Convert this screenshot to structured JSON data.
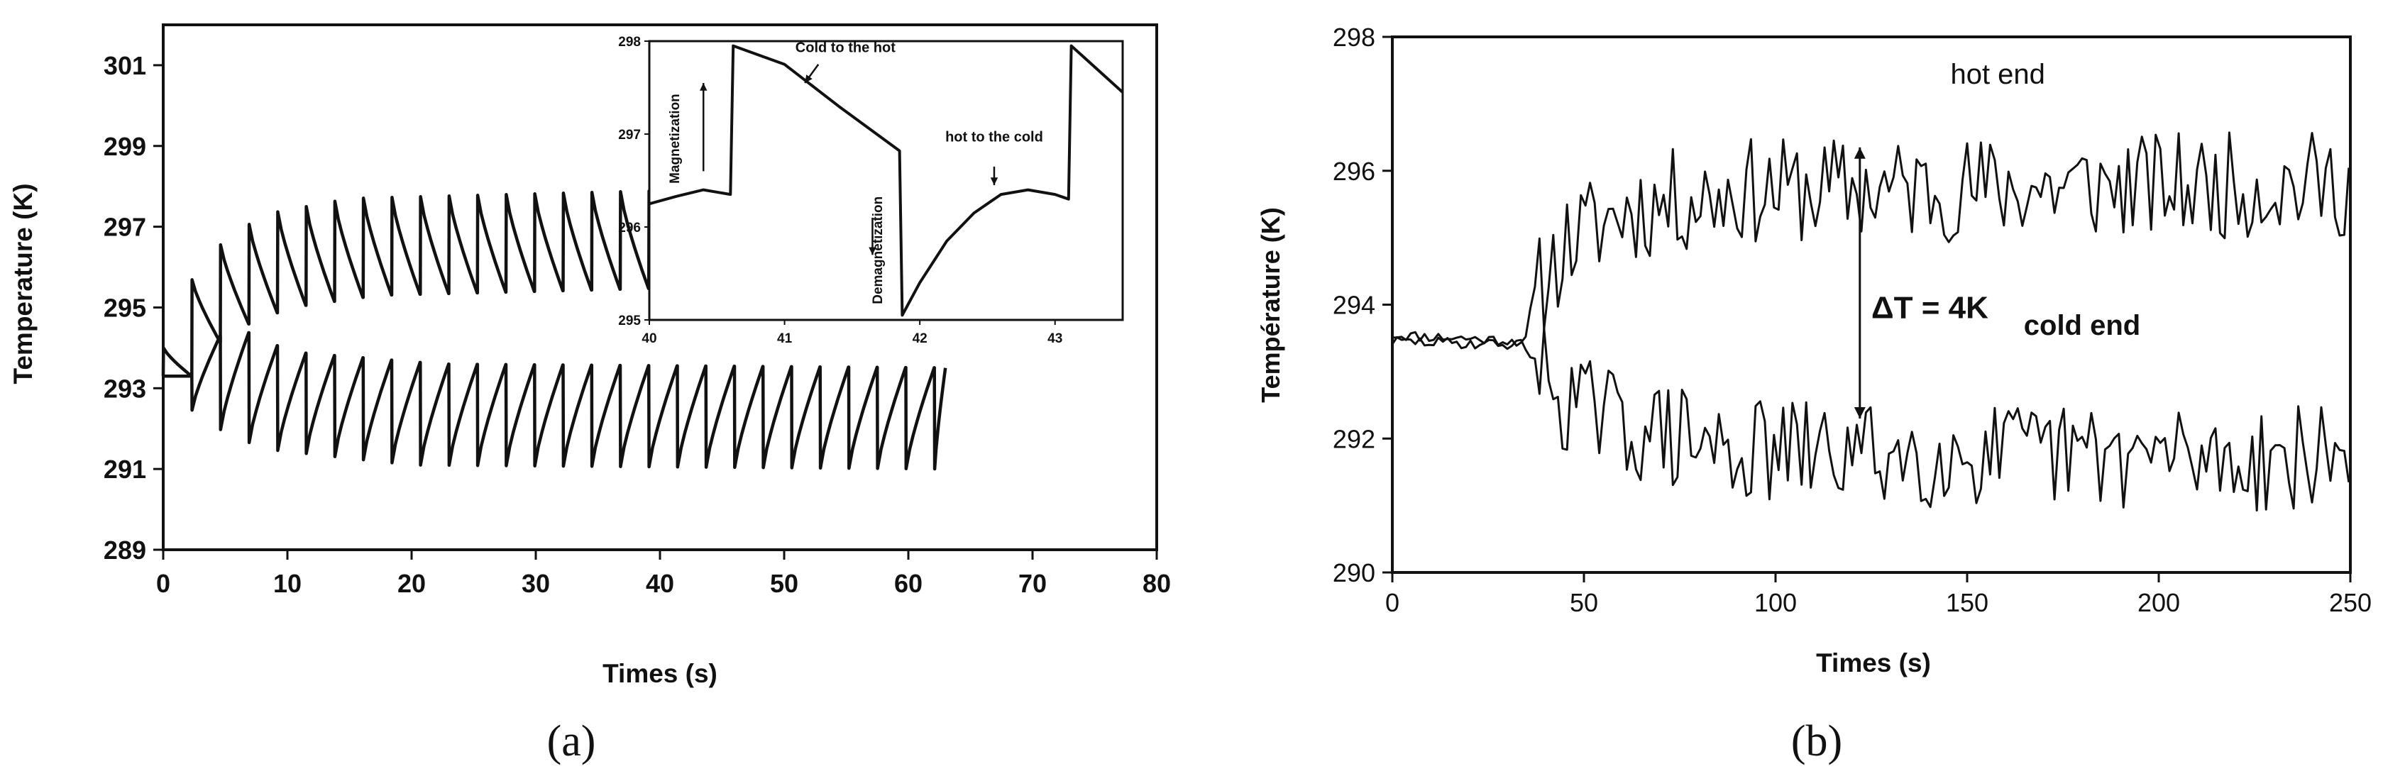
{
  "chart_data": [
    {
      "panel": "a",
      "type": "line",
      "caption": "(a)",
      "xlabel": "Times (s)",
      "ylabel": "Temperature (K)",
      "xlim": [
        0,
        80
      ],
      "ylim": [
        289,
        302
      ],
      "xticks": [
        0,
        10,
        20,
        30,
        40,
        50,
        60,
        70,
        80
      ],
      "yticks": [
        289,
        291,
        293,
        295,
        297,
        299,
        301
      ],
      "grid": false,
      "series": [
        {
          "role": "hot",
          "period": 2.3,
          "x_range": [
            0,
            41
          ],
          "start": 293.3,
          "envelope_top": [
            [
              0,
              294.0
            ],
            [
              3,
              296.2
            ],
            [
              8,
              297.3
            ],
            [
              15,
              297.7
            ],
            [
              41,
              297.9
            ]
          ],
          "envelope_bottom": [
            [
              0,
              293.3
            ],
            [
              3,
              294.4
            ],
            [
              8,
              295.0
            ],
            [
              15,
              295.3
            ],
            [
              41,
              295.5
            ]
          ]
        },
        {
          "role": "cold",
          "period": 2.3,
          "x_range": [
            0,
            63
          ],
          "start": 293.3,
          "envelope_top": [
            [
              0,
              293.3
            ],
            [
              3,
              294.6
            ],
            [
              8,
              293.9
            ],
            [
              20,
              293.6
            ],
            [
              63,
              293.5
            ]
          ],
          "envelope_bottom": [
            [
              0,
              293.3
            ],
            [
              3,
              292.2
            ],
            [
              8,
              291.5
            ],
            [
              20,
              291.1
            ],
            [
              63,
              291.0
            ]
          ]
        }
      ],
      "inset": {
        "xlim": [
          40,
          43.5
        ],
        "ylim": [
          295,
          298
        ],
        "xticks": [
          40,
          41,
          42,
          43
        ],
        "yticks": [
          295,
          296,
          297,
          298
        ],
        "series": {
          "x": [
            40.0,
            40.2,
            40.4,
            40.6,
            40.62,
            41.0,
            41.4,
            41.85,
            41.87,
            42.0,
            42.2,
            42.4,
            42.6,
            42.8,
            43.0,
            43.1,
            43.12,
            43.5
          ],
          "y": [
            296.25,
            296.33,
            296.4,
            296.35,
            297.95,
            297.75,
            297.3,
            296.82,
            295.05,
            295.4,
            295.85,
            296.15,
            296.35,
            296.4,
            296.35,
            296.3,
            297.95,
            297.45
          ]
        },
        "annotations": [
          {
            "text": "Cold to the hot",
            "x": 41.45,
            "y": 297.88
          },
          {
            "text": "hot to the cold",
            "x": 42.55,
            "y": 296.92
          },
          {
            "text": "Magnetization",
            "x": 40.22,
            "y": 296.95,
            "orient": "vertical"
          },
          {
            "text": "Demagnetization",
            "x": 41.72,
            "y": 295.75,
            "orient": "vertical"
          }
        ],
        "arrows": [
          {
            "from": [
              40.4,
              296.6
            ],
            "to": [
              40.4,
              297.55
            ]
          },
          {
            "from": [
              41.65,
              296.1
            ],
            "to": [
              41.65,
              295.7
            ]
          },
          {
            "from": [
              41.25,
              297.75
            ],
            "to": [
              41.15,
              297.55
            ]
          },
          {
            "from": [
              42.55,
              296.65
            ],
            "to": [
              42.55,
              296.45
            ]
          }
        ]
      }
    },
    {
      "panel": "b",
      "type": "line",
      "caption": "(b)",
      "xlabel": "Times (s)",
      "ylabel": "Température (K)",
      "xlim": [
        0,
        250
      ],
      "ylim": [
        290,
        298
      ],
      "xticks": [
        0,
        50,
        100,
        150,
        200,
        250
      ],
      "yticks": [
        290,
        292,
        294,
        296,
        298
      ],
      "grid": false,
      "series": [
        {
          "name": "hot end",
          "step": 1.2,
          "seed": 11,
          "noise": 0.8,
          "baseline": [
            [
              0,
              293.55
            ],
            [
              36,
              293.45
            ],
            [
              38,
              294.2
            ],
            [
              45,
              294.9
            ],
            [
              60,
              295.4
            ],
            [
              90,
              295.7
            ],
            [
              250,
              295.8
            ]
          ]
        },
        {
          "name": "cold end",
          "step": 1.2,
          "seed": 29,
          "noise": 0.8,
          "baseline": [
            [
              0,
              293.45
            ],
            [
              36,
              293.4
            ],
            [
              38,
              293.0
            ],
            [
              45,
              292.6
            ],
            [
              60,
              292.2
            ],
            [
              90,
              291.8
            ],
            [
              250,
              291.7
            ]
          ]
        }
      ],
      "annotations": [
        {
          "text": "hot end",
          "x": 158,
          "y": 297.3
        },
        {
          "text": "cold end",
          "x": 180,
          "y": 293.55
        },
        {
          "text": "ΔT = 4K",
          "x": 125,
          "y": 293.8
        }
      ],
      "arrow": {
        "x": 122,
        "y_from": 292.3,
        "y_to": 296.35
      }
    }
  ]
}
